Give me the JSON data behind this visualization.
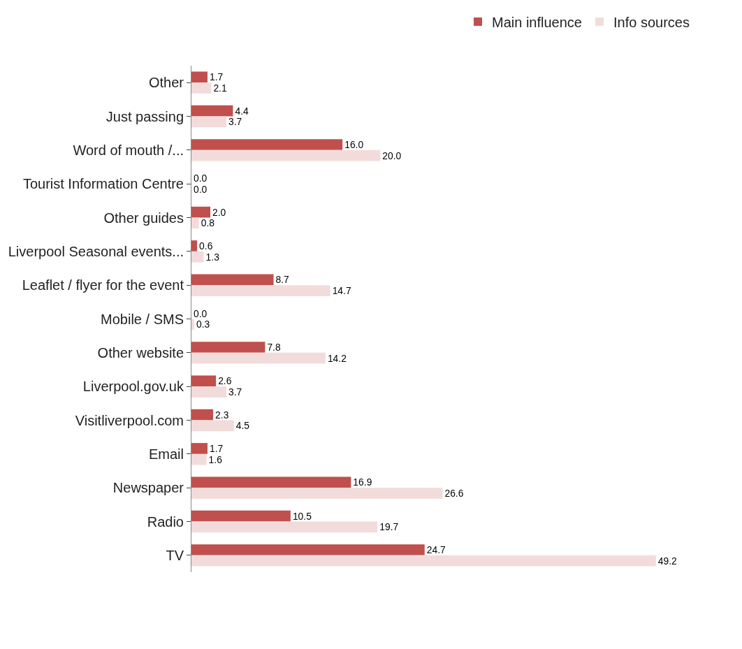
{
  "chart_data": {
    "type": "bar",
    "orientation": "horizontal",
    "categories": [
      "Other",
      "Just passing",
      "Word of mouth /...",
      "Tourist Information Centre",
      "Other guides",
      "Liverpool Seasonal events...",
      "Leaflet / flyer for the event",
      "Mobile / SMS",
      "Other website",
      "Liverpool.gov.uk",
      "Visitliverpool.com",
      "Email",
      "Newspaper",
      "Radio",
      "TV"
    ],
    "series": [
      {
        "name": "Main influence",
        "color": "#c0504d",
        "values": [
          1.7,
          4.4,
          16.0,
          0.0,
          2.0,
          0.6,
          8.7,
          0.0,
          7.8,
          2.6,
          2.3,
          1.7,
          16.9,
          10.5,
          24.7
        ],
        "value_labels": [
          "1.7",
          "4.4",
          "16.0",
          "0.0",
          "2.0",
          "0.6",
          "8.7",
          "0.0",
          "7.8",
          "2.6",
          "2.3",
          "1.7",
          "16.9",
          "10.5",
          "24.7"
        ]
      },
      {
        "name": "Info sources",
        "color": "#f2dcdb",
        "values": [
          2.1,
          3.7,
          20.0,
          0.0,
          0.8,
          1.3,
          14.7,
          0.3,
          14.2,
          3.7,
          4.5,
          1.6,
          26.6,
          19.7,
          49.2
        ],
        "value_labels": [
          "2.1",
          "3.7",
          "20.0",
          "0.0",
          "0.8",
          "1.3",
          "14.7",
          "0.3",
          "14.2",
          "3.7",
          "4.5",
          "1.6",
          "26.6",
          "19.7",
          "49.2"
        ]
      }
    ],
    "legend": "top right"
  }
}
